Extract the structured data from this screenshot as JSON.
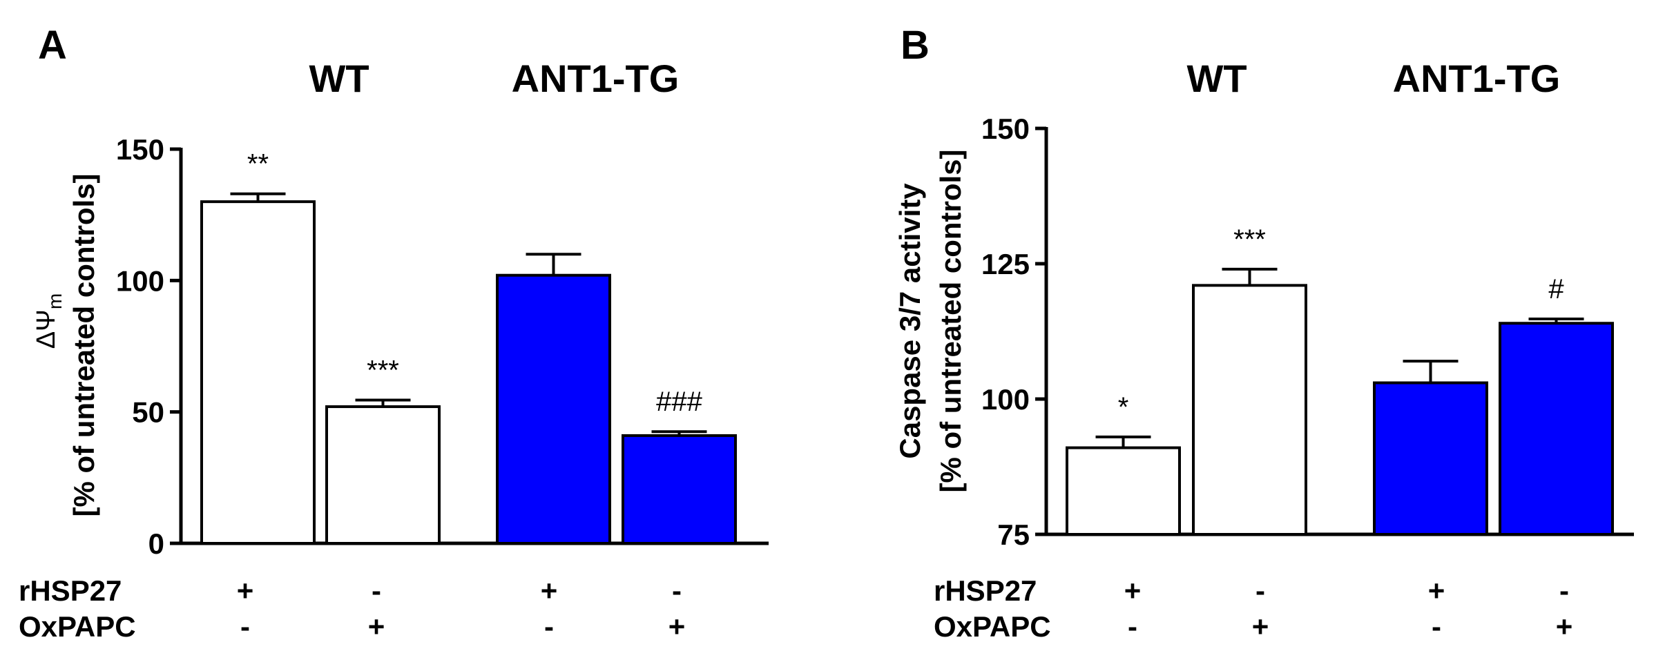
{
  "colors": {
    "wt_fill": "#ffffff",
    "tg_fill": "#0000ff",
    "ink": "#000000"
  },
  "row_labels": [
    "rHSP27",
    "OxPAPC"
  ],
  "chart_data": [
    {
      "panel": "A",
      "type": "bar",
      "group_labels": [
        "WT",
        "ANT1-TG"
      ],
      "categories": [
        "WT rHSP27",
        "WT OxPAPC",
        "ANT1-TG rHSP27",
        "ANT1-TG OxPAPC"
      ],
      "values": [
        130,
        52,
        102,
        41
      ],
      "errors": [
        3,
        2.5,
        8,
        1.5
      ],
      "annotations": [
        "**",
        "***",
        "",
        "###"
      ],
      "fills": [
        "#ffffff",
        "#ffffff",
        "#0000ff",
        "#0000ff"
      ],
      "ylim": [
        0,
        150
      ],
      "yticks": [
        0,
        50,
        100,
        150
      ],
      "ylabel_symbol": "ΔΨ",
      "ylabel_sub": "m",
      "ylabel_line2": "[% of untreated controls]",
      "treatments": {
        "rHSP27": [
          "+",
          "-",
          "+",
          "-"
        ],
        "OxPAPC": [
          "-",
          "+",
          "-",
          "+"
        ]
      }
    },
    {
      "panel": "B",
      "type": "bar",
      "group_labels": [
        "WT",
        "ANT1-TG"
      ],
      "categories": [
        "WT rHSP27",
        "WT OxPAPC",
        "ANT1-TG rHSP27",
        "ANT1-TG OxPAPC"
      ],
      "values": [
        91,
        121,
        103,
        114
      ],
      "errors": [
        2,
        3,
        4,
        0.8
      ],
      "annotations": [
        "*",
        "***",
        "",
        "#"
      ],
      "fills": [
        "#ffffff",
        "#ffffff",
        "#0000ff",
        "#0000ff"
      ],
      "ylim": [
        75,
        150
      ],
      "yticks": [
        75,
        100,
        125,
        150
      ],
      "ylabel_line1": "Caspase 3/7 activity",
      "ylabel_line2": "[% of untreated controls]",
      "treatments": {
        "rHSP27": [
          "+",
          "-",
          "+",
          "-"
        ],
        "OxPAPC": [
          "-",
          "+",
          "-",
          "+"
        ]
      }
    }
  ]
}
